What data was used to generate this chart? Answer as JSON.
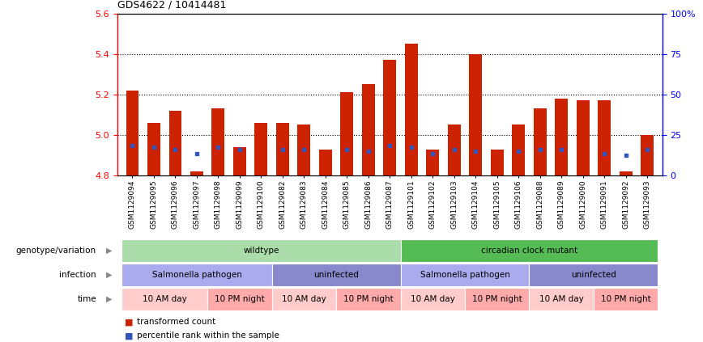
{
  "title": "GDS4622 / 10414481",
  "samples": [
    "GSM1129094",
    "GSM1129095",
    "GSM1129096",
    "GSM1129097",
    "GSM1129098",
    "GSM1129099",
    "GSM1129100",
    "GSM1129082",
    "GSM1129083",
    "GSM1129084",
    "GSM1129085",
    "GSM1129086",
    "GSM1129087",
    "GSM1129101",
    "GSM1129102",
    "GSM1129103",
    "GSM1129104",
    "GSM1129105",
    "GSM1129106",
    "GSM1129088",
    "GSM1129089",
    "GSM1129090",
    "GSM1129091",
    "GSM1129092",
    "GSM1129093"
  ],
  "bar_values": [
    5.22,
    5.06,
    5.12,
    4.82,
    5.13,
    4.94,
    5.06,
    5.06,
    5.05,
    4.93,
    5.21,
    5.25,
    5.37,
    5.45,
    4.93,
    5.05,
    5.4,
    4.93,
    5.05,
    5.13,
    5.18,
    5.17,
    5.17,
    4.82,
    5.0
  ],
  "blue_values": [
    4.95,
    4.94,
    4.93,
    4.91,
    4.94,
    4.93,
    4.94,
    4.93,
    4.93,
    4.91,
    4.93,
    4.92,
    4.95,
    4.94,
    4.91,
    4.93,
    4.92,
    4.91,
    4.92,
    4.93,
    4.93,
    4.93,
    4.91,
    4.9,
    4.93
  ],
  "blue_shown": [
    true,
    true,
    true,
    true,
    true,
    true,
    false,
    true,
    true,
    false,
    true,
    true,
    true,
    true,
    true,
    true,
    true,
    false,
    true,
    true,
    true,
    false,
    true,
    true,
    true
  ],
  "ylim_left": [
    4.8,
    5.6
  ],
  "ylim_right": [
    0,
    100
  ],
  "yticks_left": [
    4.8,
    5.0,
    5.2,
    5.4,
    5.6
  ],
  "yticks_right": [
    0,
    25,
    50,
    75,
    100
  ],
  "ytick_labels_right": [
    "0",
    "25",
    "50",
    "75",
    "100%"
  ],
  "bar_color": "#cc2200",
  "blue_color": "#3355bb",
  "bar_base": 4.8,
  "annotation_rows": [
    {
      "label": "genotype/variation",
      "segments": [
        {
          "text": "wildtype",
          "span": 13,
          "color": "#aaddaa"
        },
        {
          "text": "circadian clock mutant",
          "span": 12,
          "color": "#55bb55"
        }
      ]
    },
    {
      "label": "infection",
      "segments": [
        {
          "text": "Salmonella pathogen",
          "span": 7,
          "color": "#aaaaee"
        },
        {
          "text": "uninfected",
          "span": 6,
          "color": "#8888cc"
        },
        {
          "text": "Salmonella pathogen",
          "span": 6,
          "color": "#aaaaee"
        },
        {
          "text": "uninfected",
          "span": 6,
          "color": "#8888cc"
        }
      ]
    },
    {
      "label": "time",
      "segments": [
        {
          "text": "10 AM day",
          "span": 4,
          "color": "#ffcccc"
        },
        {
          "text": "10 PM night",
          "span": 3,
          "color": "#ffaaaa"
        },
        {
          "text": "10 AM day",
          "span": 3,
          "color": "#ffcccc"
        },
        {
          "text": "10 PM night",
          "span": 3,
          "color": "#ffaaaa"
        },
        {
          "text": "10 AM day",
          "span": 3,
          "color": "#ffcccc"
        },
        {
          "text": "10 PM night",
          "span": 3,
          "color": "#ffaaaa"
        },
        {
          "text": "10 AM day",
          "span": 3,
          "color": "#ffcccc"
        },
        {
          "text": "10 PM night",
          "span": 3,
          "color": "#ffaaaa"
        }
      ]
    }
  ],
  "legend": [
    {
      "color": "#cc2200",
      "label": "transformed count"
    },
    {
      "color": "#3355bb",
      "label": "percentile rank within the sample"
    }
  ]
}
